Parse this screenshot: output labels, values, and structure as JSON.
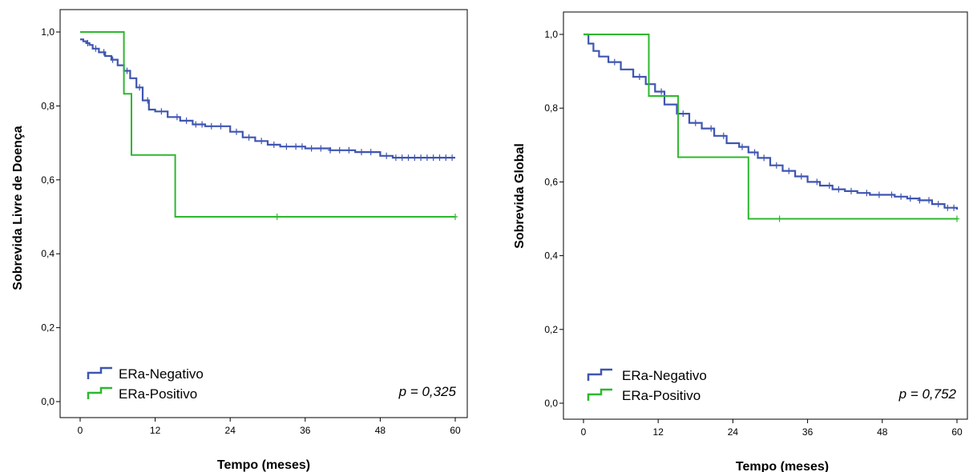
{
  "chart_data": [
    {
      "type": "line",
      "chart_kind": "kaplan-meier",
      "ylabel": "Sobrevida Livre de Doença",
      "xlabel": "Tempo (meses)",
      "xlim": [
        0,
        60
      ],
      "ylim": [
        0,
        1.0
      ],
      "xticks": [
        0,
        12,
        24,
        36,
        48,
        60
      ],
      "xtick_labels": [
        "0",
        "12",
        "24",
        "36",
        "48",
        "60"
      ],
      "yticks": [
        0,
        0.2,
        0.4,
        0.6,
        0.8,
        1.0
      ],
      "ytick_labels": [
        "0,0",
        "0,2",
        "0,4",
        "0,6",
        "0,8",
        "1,0"
      ],
      "annotation": "p = 0,325",
      "legend_position": "bottom-left",
      "series": [
        {
          "name": "ERa-Negativo",
          "color": "#3f55b0",
          "x": [
            0,
            0.5,
            1,
            1.5,
            2,
            3,
            4,
            5,
            6,
            7,
            8,
            9,
            10,
            11,
            12,
            14,
            16,
            18,
            20,
            24,
            26,
            28,
            30,
            32,
            36,
            40,
            44,
            48,
            50,
            60
          ],
          "y": [
            0.98,
            0.975,
            0.97,
            0.965,
            0.955,
            0.945,
            0.935,
            0.925,
            0.91,
            0.895,
            0.875,
            0.85,
            0.815,
            0.79,
            0.785,
            0.77,
            0.76,
            0.75,
            0.745,
            0.73,
            0.715,
            0.705,
            0.695,
            0.69,
            0.685,
            0.68,
            0.675,
            0.665,
            0.66,
            0.66
          ],
          "censor_x": [
            1.2,
            2.5,
            3.8,
            5.2,
            7.5,
            9.5,
            10.8,
            13,
            15.5,
            17,
            18.5,
            19.5,
            21,
            22.5,
            25,
            27,
            29,
            31,
            33,
            34.5,
            35.5,
            37,
            38.5,
            40,
            41.5,
            43,
            45,
            46.5,
            49,
            50.5,
            51.5,
            52.5,
            53.5,
            54.5,
            55.5,
            56.5,
            57.5,
            58.5,
            59.5
          ]
        },
        {
          "name": "ERa-Positivo",
          "color": "#2db82d",
          "x": [
            0,
            7,
            8.2,
            15.2,
            60
          ],
          "y": [
            1.0,
            0.833,
            0.667,
            0.5,
            0.5
          ],
          "censor_x": [
            31.5,
            60
          ]
        }
      ]
    },
    {
      "type": "line",
      "chart_kind": "kaplan-meier",
      "ylabel": "Sobrevida Global",
      "xlabel": "Tempo (meses)",
      "xlim": [
        0,
        60
      ],
      "ylim": [
        0,
        1.0
      ],
      "xticks": [
        0,
        12,
        24,
        36,
        48,
        60
      ],
      "xtick_labels": [
        "0",
        "12",
        "24",
        "36",
        "48",
        "60"
      ],
      "yticks": [
        0,
        0.2,
        0.4,
        0.6,
        0.8,
        1.0
      ],
      "ytick_labels": [
        "0,0",
        "0,2",
        "0,4",
        "0,6",
        "0,8",
        "1,0"
      ],
      "annotation": "p = 0,752",
      "legend_position": "bottom-left",
      "series": [
        {
          "name": "ERa-Negativo",
          "color": "#3f55b0",
          "x": [
            0,
            0.8,
            1.6,
            2.5,
            4,
            6,
            8,
            10,
            11.5,
            13,
            15,
            17,
            19,
            21,
            23,
            25,
            26.5,
            28,
            30,
            32,
            34,
            36,
            38,
            40,
            42,
            44,
            46,
            48,
            50,
            52,
            54,
            56,
            58,
            60
          ],
          "y": [
            1.0,
            0.975,
            0.955,
            0.94,
            0.925,
            0.905,
            0.885,
            0.865,
            0.845,
            0.81,
            0.785,
            0.76,
            0.745,
            0.725,
            0.705,
            0.695,
            0.68,
            0.665,
            0.645,
            0.63,
            0.615,
            0.6,
            0.59,
            0.58,
            0.575,
            0.57,
            0.565,
            0.565,
            0.56,
            0.555,
            0.55,
            0.54,
            0.53,
            0.525
          ],
          "censor_x": [
            5,
            9,
            12.5,
            16,
            18,
            20.5,
            22.5,
            25.5,
            27.5,
            29,
            31,
            33,
            35,
            37.5,
            39.5,
            41,
            43,
            45.5,
            47.5,
            49.5,
            51,
            52.5,
            54,
            55.5,
            57,
            58.5,
            59.5
          ]
        },
        {
          "name": "ERa-Positivo",
          "color": "#2db82d",
          "x": [
            0,
            10.5,
            15.2,
            26.5,
            60
          ],
          "y": [
            1.0,
            0.833,
            0.667,
            0.5,
            0.5
          ],
          "censor_x": [
            31.5,
            60
          ]
        }
      ]
    }
  ]
}
